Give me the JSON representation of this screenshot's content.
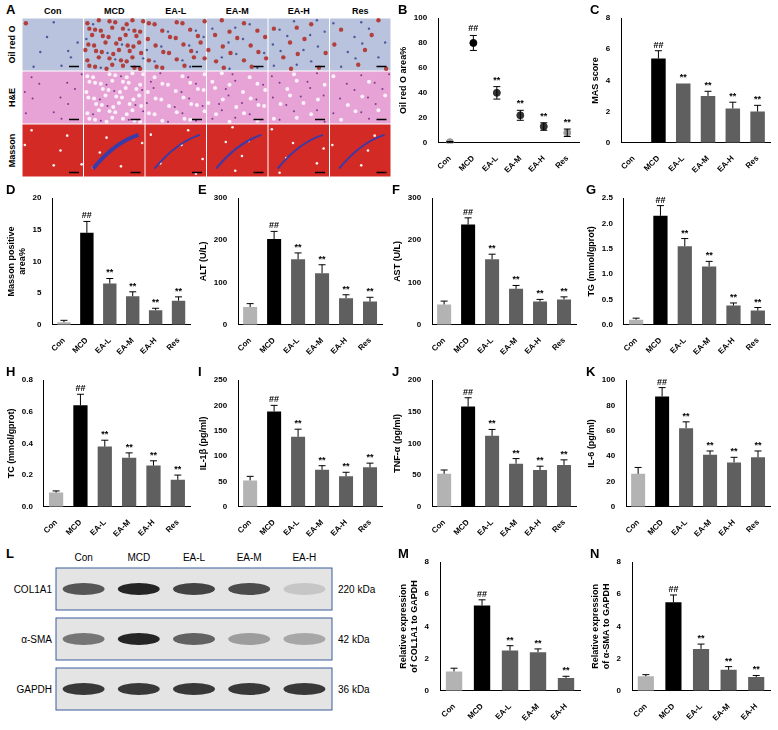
{
  "figure": {
    "A": {
      "panel": "A",
      "columns": [
        "Con",
        "MCD",
        "EA-L",
        "EA-M",
        "EA-H",
        "Res"
      ],
      "rows": [
        "Oil red O",
        "H&E",
        "Masson"
      ]
    },
    "L": {
      "panel": "L",
      "columns": [
        "Con",
        "MCD",
        "EA-L",
        "EA-M",
        "EA-H"
      ],
      "bands": [
        {
          "name": "COL1A1",
          "size": "220 kDa"
        },
        {
          "name": "α-SMA",
          "size": "42 kDa"
        },
        {
          "name": "GAPDH",
          "size": "36 kDa"
        }
      ]
    }
  },
  "chart_data": [
    {
      "panel": "B",
      "type": "scatter",
      "y_label": "Oil red O area%",
      "categories": [
        "Con",
        "MCD",
        "EA-L",
        "EA-M",
        "EA-H",
        "Res"
      ],
      "values": [
        0.5,
        80,
        40,
        22,
        13,
        8
      ],
      "errors": [
        0.5,
        6,
        5,
        4,
        3,
        3
      ],
      "annotations": [
        null,
        "##",
        "**",
        "**",
        "**",
        "**"
      ],
      "colors": [
        "#999999",
        "#000000",
        "#333333",
        "#333333",
        "#333333",
        "#999999"
      ],
      "marker": "circle",
      "ylim": [
        0,
        100
      ],
      "yticks": [
        0,
        20,
        40,
        60,
        80,
        100
      ],
      "grid": false
    },
    {
      "panel": "C",
      "type": "bar",
      "y_label": "MAS score",
      "categories": [
        "Con",
        "MCD",
        "EA-L",
        "EA-M",
        "EA-H",
        "Res"
      ],
      "values": [
        0,
        5.4,
        3.8,
        3.0,
        2.2,
        2.0
      ],
      "errors": [
        0,
        0.5,
        0,
        0.3,
        0.4,
        0.4
      ],
      "annotations": [
        null,
        "##",
        "**",
        "**",
        "**",
        "**"
      ],
      "colors": [
        "#b3b3b3",
        "#000000",
        "#5f5f5f",
        "#5f5f5f",
        "#5f5f5f",
        "#5f5f5f"
      ],
      "ylim": [
        0,
        8
      ],
      "yticks": [
        0,
        2,
        4,
        6,
        8
      ],
      "grid": false
    },
    {
      "panel": "D",
      "type": "bar",
      "y_label": "Masson positive area%",
      "categories": [
        "Con",
        "MCD",
        "EA-L",
        "EA-M",
        "EA-H",
        "Res"
      ],
      "values": [
        0.4,
        14.5,
        6.5,
        4.5,
        2.3,
        3.8
      ],
      "errors": [
        0.3,
        1.8,
        0.8,
        0.7,
        0.3,
        0.6
      ],
      "annotations": [
        null,
        "##",
        "**",
        "**",
        "**",
        "**"
      ],
      "colors": [
        "#b3b3b3",
        "#000000",
        "#5f5f5f",
        "#5f5f5f",
        "#5f5f5f",
        "#5f5f5f"
      ],
      "ylim": [
        0,
        20
      ],
      "yticks": [
        0,
        5,
        10,
        15,
        20
      ],
      "grid": false
    },
    {
      "panel": "E",
      "type": "bar",
      "y_label": "ALT (U/L)",
      "categories": [
        "Con",
        "MCD",
        "EA-L",
        "EA-M",
        "EA-H",
        "Res"
      ],
      "values": [
        42,
        203,
        155,
        122,
        63,
        55
      ],
      "errors": [
        8,
        18,
        15,
        20,
        8,
        10
      ],
      "annotations": [
        null,
        "##",
        "**",
        "**",
        "**",
        "**"
      ],
      "colors": [
        "#b3b3b3",
        "#000000",
        "#5f5f5f",
        "#5f5f5f",
        "#5f5f5f",
        "#5f5f5f"
      ],
      "ylim": [
        0,
        300
      ],
      "yticks": [
        0,
        100,
        200,
        300
      ],
      "grid": false
    },
    {
      "panel": "F",
      "type": "bar",
      "y_label": "AST (U/L)",
      "categories": [
        "Con",
        "MCD",
        "EA-L",
        "EA-M",
        "EA-H",
        "Res"
      ],
      "values": [
        48,
        237,
        155,
        85,
        55,
        60
      ],
      "errors": [
        8,
        16,
        12,
        8,
        5,
        6
      ],
      "annotations": [
        null,
        "##",
        "**",
        "**",
        "**",
        "**"
      ],
      "colors": [
        "#b3b3b3",
        "#000000",
        "#5f5f5f",
        "#5f5f5f",
        "#5f5f5f",
        "#5f5f5f"
      ],
      "ylim": [
        0,
        300
      ],
      "yticks": [
        0,
        100,
        200,
        300
      ],
      "grid": false
    },
    {
      "panel": "G",
      "type": "bar",
      "y_label": "TG (mmol/gprot)",
      "categories": [
        "Con",
        "MCD",
        "EA-L",
        "EA-M",
        "EA-H",
        "Res"
      ],
      "values": [
        0.1,
        2.15,
        1.55,
        1.15,
        0.38,
        0.28
      ],
      "errors": [
        0.03,
        0.2,
        0.15,
        0.1,
        0.05,
        0.06
      ],
      "annotations": [
        null,
        "##",
        "**",
        "**",
        "**",
        "**"
      ],
      "colors": [
        "#b3b3b3",
        "#000000",
        "#5f5f5f",
        "#5f5f5f",
        "#5f5f5f",
        "#5f5f5f"
      ],
      "ylim": [
        0,
        2.5
      ],
      "yticks": [
        {
          "value": 0,
          "label": "0.0"
        },
        0.5,
        {
          "value": 1,
          "label": "1.0"
        },
        1.5,
        {
          "value": 2,
          "label": "2.0"
        },
        2.5
      ],
      "grid": false
    },
    {
      "panel": "H",
      "type": "bar",
      "y_label": "TC (mmol/gprot)",
      "categories": [
        "Con",
        "MCD",
        "EA-L",
        "EA-M",
        "EA-H",
        "Res"
      ],
      "values": [
        0.09,
        0.64,
        0.38,
        0.31,
        0.26,
        0.17
      ],
      "errors": [
        0.01,
        0.07,
        0.04,
        0.03,
        0.03,
        0.03
      ],
      "annotations": [
        null,
        "##",
        "**",
        "**",
        "**",
        "**"
      ],
      "colors": [
        "#b3b3b3",
        "#000000",
        "#5f5f5f",
        "#5f5f5f",
        "#5f5f5f",
        "#5f5f5f"
      ],
      "ylim": [
        0,
        0.8
      ],
      "yticks": [
        {
          "value": 0,
          "label": "0.0"
        },
        0.2,
        0.4,
        0.6,
        0.8
      ],
      "grid": false
    },
    {
      "panel": "I",
      "type": "bar",
      "y_label": "IL-1β (pg/ml)",
      "categories": [
        "Con",
        "MCD",
        "EA-L",
        "EA-M",
        "EA-H",
        "Res"
      ],
      "values": [
        52,
        188,
        138,
        73,
        60,
        78
      ],
      "errors": [
        8,
        12,
        15,
        8,
        8,
        8
      ],
      "annotations": [
        null,
        "##",
        "**",
        "**",
        "**",
        "**"
      ],
      "colors": [
        "#b3b3b3",
        "#000000",
        "#5f5f5f",
        "#5f5f5f",
        "#5f5f5f",
        "#5f5f5f"
      ],
      "ylim": [
        0,
        250
      ],
      "yticks": [
        0,
        50,
        100,
        150,
        200,
        250
      ],
      "grid": false
    },
    {
      "panel": "J",
      "type": "bar",
      "y_label": "TNF-α (pg/ml)",
      "categories": [
        "Con",
        "MCD",
        "EA-L",
        "EA-M",
        "EA-H",
        "Res"
      ],
      "values": [
        52,
        158,
        112,
        68,
        58,
        66
      ],
      "errors": [
        6,
        14,
        10,
        8,
        6,
        8
      ],
      "annotations": [
        null,
        "##",
        "**",
        "**",
        "**",
        "**"
      ],
      "colors": [
        "#b3b3b3",
        "#000000",
        "#5f5f5f",
        "#5f5f5f",
        "#5f5f5f",
        "#5f5f5f"
      ],
      "ylim": [
        0,
        200
      ],
      "yticks": [
        0,
        50,
        100,
        150,
        200
      ],
      "grid": false
    },
    {
      "panel": "K",
      "type": "bar",
      "y_label": "IL-6 (pg/ml)",
      "categories": [
        "Con",
        "MCD",
        "EA-L",
        "EA-M",
        "EA-H",
        "Res"
      ],
      "values": [
        26,
        87,
        62,
        41,
        35,
        39
      ],
      "errors": [
        5,
        7,
        5,
        3,
        4,
        5
      ],
      "annotations": [
        null,
        "##",
        "**",
        "**",
        "**",
        "**"
      ],
      "colors": [
        "#b3b3b3",
        "#000000",
        "#5f5f5f",
        "#5f5f5f",
        "#5f5f5f",
        "#5f5f5f"
      ],
      "ylim": [
        0,
        100
      ],
      "yticks": [
        0,
        20,
        40,
        60,
        80,
        100
      ],
      "grid": false
    },
    {
      "panel": "M",
      "type": "bar",
      "y_label": "Relative expression of COL1A1 to GAPDH",
      "categories": [
        "Con",
        "MCD",
        "EA-L",
        "EA-M",
        "EA-H"
      ],
      "values": [
        1.2,
        5.3,
        2.5,
        2.4,
        0.8
      ],
      "errors": [
        0.2,
        0.35,
        0.3,
        0.2,
        0.1
      ],
      "annotations": [
        null,
        "##",
        "**",
        "**",
        "**"
      ],
      "colors": [
        "#b3b3b3",
        "#000000",
        "#5f5f5f",
        "#5f5f5f",
        "#5f5f5f"
      ],
      "ylim": [
        0,
        8
      ],
      "yticks": [
        0,
        2,
        4,
        6,
        8
      ],
      "grid": false
    },
    {
      "panel": "N",
      "type": "bar",
      "y_label": "Relative expression of α-SMA to GAPDH",
      "categories": [
        "Con",
        "MCD",
        "EA-L",
        "EA-M",
        "EA-H"
      ],
      "values": [
        0.9,
        5.5,
        2.6,
        1.3,
        0.85
      ],
      "errors": [
        0.1,
        0.45,
        0.3,
        0.2,
        0.1
      ],
      "annotations": [
        null,
        "##",
        "**",
        "**",
        "**"
      ],
      "colors": [
        "#b3b3b3",
        "#000000",
        "#5f5f5f",
        "#5f5f5f",
        "#5f5f5f"
      ],
      "ylim": [
        0,
        8
      ],
      "yticks": [
        0,
        2,
        4,
        6,
        8
      ],
      "grid": false
    }
  ]
}
